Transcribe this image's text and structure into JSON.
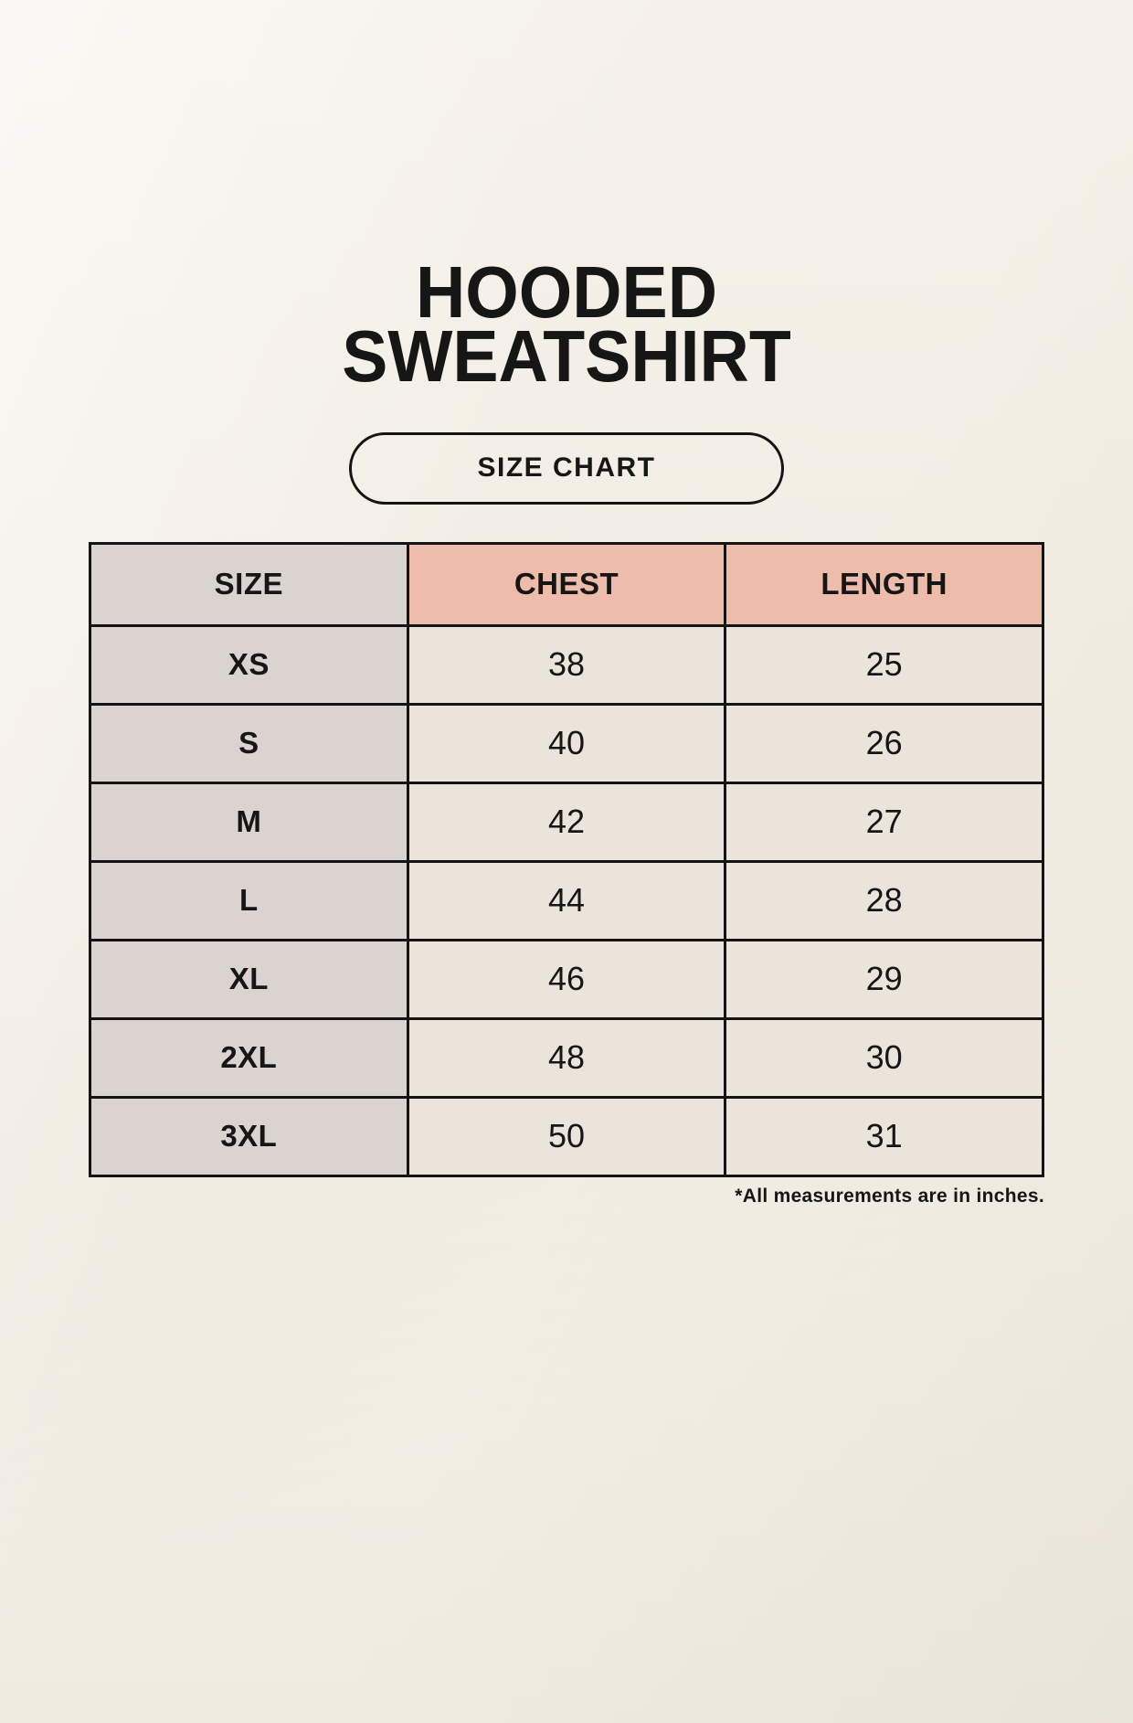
{
  "page": {
    "title_lines": [
      "HOODED",
      "SWEATSHIRT"
    ],
    "button_label": "SIZE CHART",
    "footnote": "*All measurements are in inches."
  },
  "colors": {
    "page_background": "#f7f3ea",
    "accent_salmon": "#eebcab",
    "size_column_gray": "#dad3d0",
    "cell_cream": "#eae4da",
    "border_black": "#141414",
    "text_black": "#161616"
  },
  "chart_data": {
    "type": "table",
    "title": "HOODED SWEATSHIRT SIZE CHART",
    "units": "inches",
    "columns": [
      "SIZE",
      "CHEST",
      "LENGTH"
    ],
    "rows": [
      {
        "size": "XS",
        "chest": 38,
        "length": 25
      },
      {
        "size": "S",
        "chest": 40,
        "length": 26
      },
      {
        "size": "M",
        "chest": 42,
        "length": 27
      },
      {
        "size": "L",
        "chest": 44,
        "length": 28
      },
      {
        "size": "XL",
        "chest": 46,
        "length": 29
      },
      {
        "size": "2XL",
        "chest": 48,
        "length": 30
      },
      {
        "size": "3XL",
        "chest": 50,
        "length": 31
      }
    ]
  }
}
